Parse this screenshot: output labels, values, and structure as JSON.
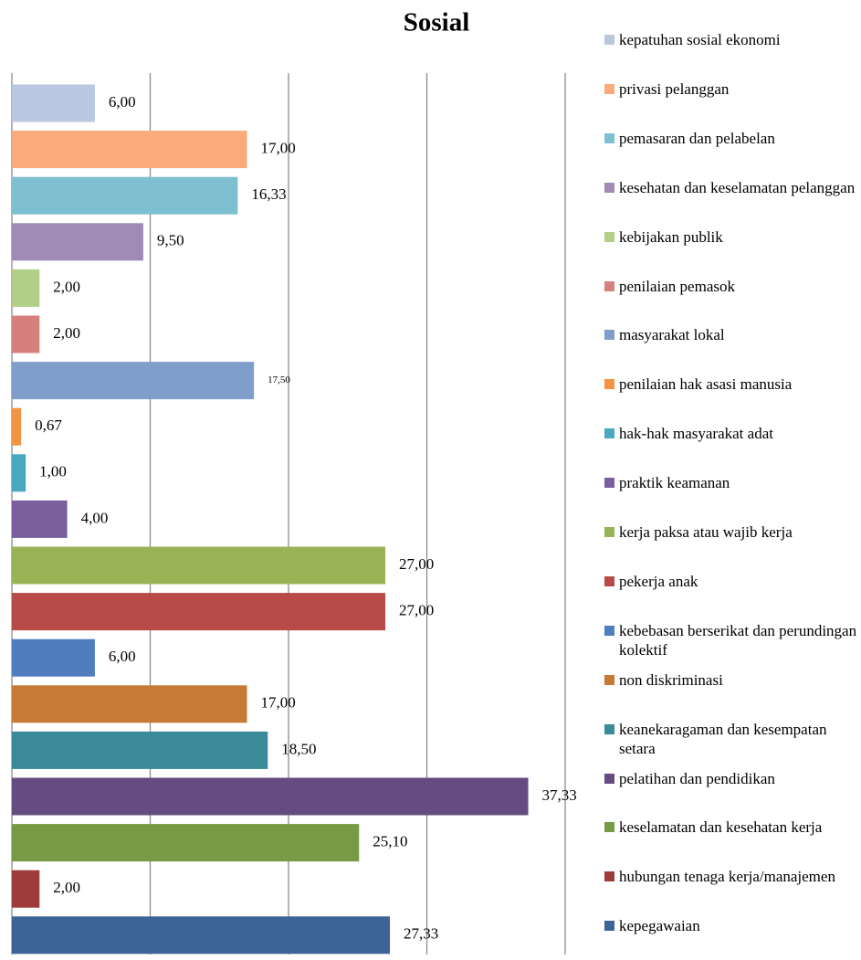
{
  "chart_data": {
    "type": "barh",
    "title": "Sosial",
    "categories": [
      "kepatuhan sosial ekonomi",
      "privasi pelanggan",
      "pemasaran dan pelabelan",
      "kesehatan dan keselamatan pelanggan",
      "kebijakan publik",
      "penilaian pemasok",
      "masyarakat lokal",
      "penilaian hak asasi manusia",
      "hak-hak masyarakat adat",
      "praktik keamanan",
      "kerja paksa atau wajib kerja",
      "pekerja anak",
      "kebebasan berserikat dan perundingan kolektif",
      "non diskriminasi",
      "keanekaragaman dan kesempatan setara",
      "pelatihan dan pendidikan",
      "keselamatan dan kesehatan kerja",
      "hubungan tenaga kerja/manajemen",
      "kepegawaian"
    ],
    "values": [
      6,
      17,
      16.33,
      9.5,
      2,
      2,
      17.5,
      0.67,
      1,
      4,
      27,
      27,
      6,
      17,
      18.5,
      37.33,
      25.1,
      2,
      27.33
    ],
    "value_labels": [
      "6,00",
      "17,00",
      "16,33",
      "9,50",
      "2,00",
      "2,00",
      "17,50",
      "0,67",
      "1,00",
      "4,00",
      "27,00",
      "27,00",
      "6,00",
      "17,00",
      "18,50",
      "37,33",
      "25,10",
      "2,00",
      "27,33"
    ],
    "colors": [
      "#b9c7e0",
      "#f9ab7c",
      "#7ebfd1",
      "#9f8bb6",
      "#b3cf87",
      "#d6807d",
      "#7f9ecb",
      "#f29444",
      "#49a7c0",
      "#7b5e9e",
      "#98b456",
      "#b84a48",
      "#4f7dbf",
      "#c67a35",
      "#3a8a99",
      "#644c80",
      "#779b44",
      "#9d3c3a",
      "#3c6496"
    ],
    "xlim": [
      0,
      40
    ],
    "xticks": [
      0,
      10,
      20,
      30,
      40
    ],
    "grid": true,
    "legend": "right"
  }
}
